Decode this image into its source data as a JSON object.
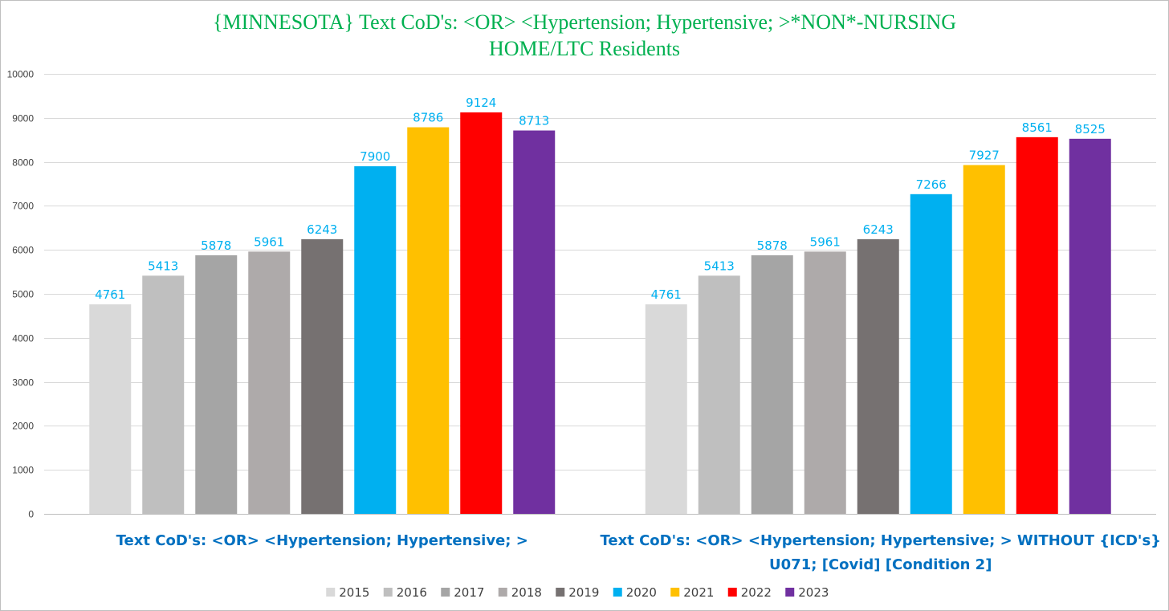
{
  "chart_data": {
    "type": "bar",
    "title_lines": [
      "{MINNESOTA}   Text CoD's: <OR> <Hypertension;  Hypertensive;  >*NON*-NURSING",
      "HOME/LTC Residents"
    ],
    "categories": [
      [
        "Text CoD's: <OR> <Hypertension; Hypertensive; >"
      ],
      [
        "Text CoD's: <OR> <Hypertension; Hypertensive; > WITHOUT {ICD's}",
        "U071;  [Covid]  [Condition 2]"
      ]
    ],
    "series": [
      {
        "name": "2015",
        "color": "#d9d9d9",
        "values": [
          4761,
          4761
        ]
      },
      {
        "name": "2016",
        "color": "#bfbfbf",
        "values": [
          5413,
          5413
        ]
      },
      {
        "name": "2017",
        "color": "#a5a5a5",
        "values": [
          5878,
          5878
        ]
      },
      {
        "name": "2018",
        "color": "#aeaaaa",
        "values": [
          5961,
          5961
        ]
      },
      {
        "name": "2019",
        "color": "#767171",
        "values": [
          6243,
          6243
        ]
      },
      {
        "name": "2020",
        "color": "#00b0f0",
        "values": [
          7900,
          7266
        ]
      },
      {
        "name": "2021",
        "color": "#ffc000",
        "values": [
          8786,
          7927
        ]
      },
      {
        "name": "2022",
        "color": "#ff0000",
        "values": [
          9124,
          8561
        ]
      },
      {
        "name": "2023",
        "color": "#7030a0",
        "values": [
          8713,
          8525
        ]
      }
    ],
    "ylim": [
      0,
      10000
    ],
    "yticks": [
      0,
      1000,
      2000,
      3000,
      4000,
      5000,
      6000,
      7000,
      8000,
      9000,
      10000
    ],
    "xlabel": "",
    "ylabel": "",
    "grid": true,
    "legend_position": "bottom"
  }
}
